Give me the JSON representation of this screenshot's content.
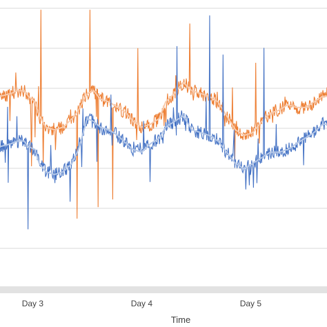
{
  "chart_data": {
    "type": "line",
    "title": "",
    "xlabel": "Time",
    "ylabel": "",
    "x_ticks": [
      "Day 3",
      "Day 4",
      "Day 5"
    ],
    "xlim_days": [
      2.7,
      5.7
    ],
    "y_ticks": [],
    "ylim": [
      0,
      1
    ],
    "grid": true,
    "legend": "none",
    "series": [
      {
        "color": "#ed7d31",
        "smooth_color": "#f8cbad",
        "raw_points": [
          [
            2.7,
            0.68
          ],
          [
            2.8,
            0.69
          ],
          [
            2.86,
            0.7
          ],
          [
            2.92,
            0.7
          ],
          [
            2.96,
            0.68
          ],
          [
            3.02,
            0.66
          ],
          [
            3.06,
            0.61
          ],
          [
            3.12,
            0.57
          ],
          [
            3.2,
            0.56
          ],
          [
            3.28,
            0.57
          ],
          [
            3.36,
            0.6
          ],
          [
            3.42,
            0.63
          ],
          [
            3.5,
            0.69
          ],
          [
            3.56,
            0.7
          ],
          [
            3.62,
            0.67
          ],
          [
            3.7,
            0.66
          ],
          [
            3.78,
            0.64
          ],
          [
            3.86,
            0.62
          ],
          [
            3.92,
            0.59
          ],
          [
            4.0,
            0.57
          ],
          [
            4.08,
            0.58
          ],
          [
            4.16,
            0.6
          ],
          [
            4.22,
            0.66
          ],
          [
            4.3,
            0.69
          ],
          [
            4.38,
            0.73
          ],
          [
            4.46,
            0.7
          ],
          [
            4.54,
            0.69
          ],
          [
            4.62,
            0.68
          ],
          [
            4.7,
            0.66
          ],
          [
            4.78,
            0.61
          ],
          [
            4.86,
            0.56
          ],
          [
            4.94,
            0.54
          ],
          [
            5.02,
            0.55
          ],
          [
            5.1,
            0.59
          ],
          [
            5.18,
            0.62
          ],
          [
            5.26,
            0.63
          ],
          [
            5.34,
            0.65
          ],
          [
            5.42,
            0.64
          ],
          [
            5.5,
            0.64
          ],
          [
            5.58,
            0.66
          ],
          [
            5.66,
            0.68
          ],
          [
            5.7,
            0.68
          ]
        ]
      },
      {
        "color": "#4472c4",
        "smooth_color": "#b4c7e7",
        "raw_points": [
          [
            2.7,
            0.5
          ],
          [
            2.8,
            0.51
          ],
          [
            2.86,
            0.52
          ],
          [
            2.92,
            0.52
          ],
          [
            2.96,
            0.5
          ],
          [
            3.02,
            0.49
          ],
          [
            3.06,
            0.44
          ],
          [
            3.12,
            0.41
          ],
          [
            3.2,
            0.4
          ],
          [
            3.28,
            0.41
          ],
          [
            3.36,
            0.44
          ],
          [
            3.42,
            0.49
          ],
          [
            3.5,
            0.6
          ],
          [
            3.56,
            0.59
          ],
          [
            3.62,
            0.57
          ],
          [
            3.7,
            0.56
          ],
          [
            3.78,
            0.54
          ],
          [
            3.86,
            0.51
          ],
          [
            3.92,
            0.49
          ],
          [
            4.0,
            0.48
          ],
          [
            4.08,
            0.51
          ],
          [
            4.16,
            0.53
          ],
          [
            4.22,
            0.57
          ],
          [
            4.3,
            0.59
          ],
          [
            4.38,
            0.61
          ],
          [
            4.46,
            0.56
          ],
          [
            4.54,
            0.55
          ],
          [
            4.62,
            0.54
          ],
          [
            4.7,
            0.52
          ],
          [
            4.78,
            0.48
          ],
          [
            4.86,
            0.44
          ],
          [
            4.94,
            0.42
          ],
          [
            5.02,
            0.44
          ],
          [
            5.1,
            0.46
          ],
          [
            5.18,
            0.48
          ],
          [
            5.26,
            0.48
          ],
          [
            5.34,
            0.49
          ],
          [
            5.42,
            0.51
          ],
          [
            5.5,
            0.53
          ],
          [
            5.58,
            0.55
          ],
          [
            5.66,
            0.58
          ],
          [
            5.7,
            0.58
          ]
        ]
      }
    ]
  }
}
